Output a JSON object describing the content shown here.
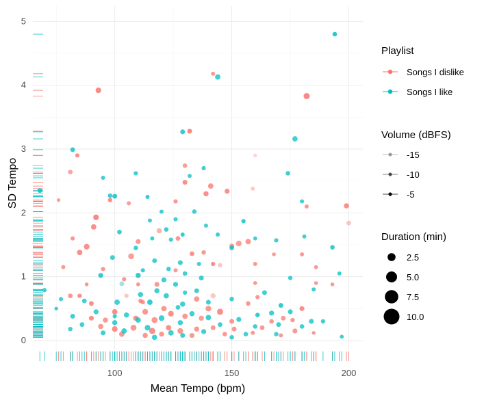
{
  "chart_data": {
    "type": "scatter",
    "xlabel": "Mean Tempo (bpm)",
    "ylabel": "SD Tempo",
    "xlim": [
      65,
      206
    ],
    "ylim": [
      -0.15,
      5.25
    ],
    "xticks": [
      100,
      150,
      200
    ],
    "yticks": [
      0,
      1,
      2,
      3,
      4,
      5
    ],
    "grid": true,
    "rug": true,
    "colors": {
      "Songs I dislike": "#F8766D",
      "Songs I like": "#00BFC4"
    },
    "legend": {
      "placement": "right",
      "playlist": {
        "title": "Playlist",
        "entries": [
          "Songs I dislike",
          "Songs I like"
        ]
      },
      "volume": {
        "title": "Volume (dBFS)",
        "entries": [
          "-15",
          "-10",
          "-5"
        ]
      },
      "duration": {
        "title": "Duration (min)",
        "entries": [
          "2.5",
          "5.0",
          "7.5",
          "10.0"
        ]
      }
    },
    "series": [
      {
        "name": "Songs I dislike",
        "points": [
          [
            93,
            3.92,
            4.8,
            -6
          ],
          [
            142,
            4.18,
            2.4,
            -8
          ],
          [
            182,
            3.83,
            6,
            -6
          ],
          [
            132,
            3.28,
            3.5,
            -6
          ],
          [
            130,
            2.74,
            3,
            -9
          ],
          [
            81,
            2.64,
            3.2,
            -10
          ],
          [
            84,
            2.9,
            2.6,
            -7
          ],
          [
            160,
            2.9,
            2,
            -17
          ],
          [
            159,
            2.38,
            2.2,
            -15
          ],
          [
            141,
            2.42,
            4.5,
            -8
          ],
          [
            130,
            2.48,
            3.6,
            -7
          ],
          [
            148,
            2.34,
            3.8,
            -7
          ],
          [
            139,
            2.3,
            4,
            -7
          ],
          [
            76,
            2.2,
            1.8,
            -9
          ],
          [
            126,
            2.18,
            2.6,
            -8
          ],
          [
            98,
            2.2,
            2.8,
            -7
          ],
          [
            106,
            2.15,
            2.5,
            -9
          ],
          [
            182,
            2.1,
            2.4,
            -8
          ],
          [
            199,
            2.11,
            4,
            -7
          ],
          [
            200,
            1.84,
            3.4,
            -15
          ],
          [
            82,
            1.6,
            2.6,
            -8
          ],
          [
            92,
            1.93,
            5,
            -6
          ],
          [
            91,
            1.78,
            4.5,
            -7
          ],
          [
            119,
            1.72,
            4,
            -12
          ],
          [
            110,
            1.55,
            3.6,
            -8
          ],
          [
            127,
            1.6,
            3.2,
            -8
          ],
          [
            88,
            1.47,
            5,
            -7
          ],
          [
            85,
            1.38,
            4.5,
            -7
          ],
          [
            107,
            1.32,
            5.5,
            -9
          ],
          [
            133,
            1.36,
            3.2,
            -7
          ],
          [
            150,
            1.48,
            3.5,
            -8
          ],
          [
            153,
            1.52,
            5,
            -9
          ],
          [
            157,
            1.55,
            4.5,
            -8
          ],
          [
            138,
            1.38,
            2.8,
            -8
          ],
          [
            142,
            1.2,
            2.7,
            -7
          ],
          [
            160,
            1.2,
            2.4,
            -8
          ],
          [
            168,
            1.35,
            2.2,
            -9
          ],
          [
            180,
            1.35,
            2.4,
            -8
          ],
          [
            145,
            1.18,
            3,
            -15
          ],
          [
            186,
            1.15,
            2.2,
            -8
          ],
          [
            78,
            1.15,
            2.4,
            -8
          ],
          [
            95,
            1.12,
            2.6,
            -8
          ],
          [
            126,
            1.1,
            2.4,
            -8
          ],
          [
            104,
            0.96,
            2.6,
            -8
          ],
          [
            110,
            0.88,
            2.2,
            -8
          ],
          [
            160,
            0.9,
            2.2,
            -8
          ],
          [
            118,
            0.88,
            3.5,
            -8
          ],
          [
            81,
            0.7,
            3.2,
            -8
          ],
          [
            85,
            0.7,
            2.8,
            -7
          ],
          [
            105,
            0.7,
            2.8,
            -15
          ],
          [
            90,
            0.58,
            3.4,
            -7
          ],
          [
            111,
            0.62,
            2.8,
            -8
          ],
          [
            135,
            0.65,
            4.5,
            -8
          ],
          [
            142,
            0.7,
            4,
            -15
          ],
          [
            157,
            0.58,
            3,
            -8
          ],
          [
            161,
            0.68,
            2.6,
            -8
          ],
          [
            180,
            0.5,
            3.6,
            -7
          ],
          [
            145,
            0.45,
            6,
            -7
          ],
          [
            140,
            0.5,
            5,
            -8
          ],
          [
            100,
            0.45,
            4.5,
            -7
          ],
          [
            113,
            0.45,
            5,
            -8
          ],
          [
            121,
            0.5,
            4.5,
            -8
          ],
          [
            124,
            0.42,
            5,
            -7
          ],
          [
            130,
            0.38,
            4.5,
            -8
          ],
          [
            109,
            0.35,
            4,
            -7
          ],
          [
            90,
            0.35,
            3.6,
            -7
          ],
          [
            96,
            0.32,
            4,
            -8
          ],
          [
            117,
            0.32,
            5.5,
            -8
          ],
          [
            137,
            0.35,
            4,
            -9
          ],
          [
            150,
            0.3,
            3.5,
            -8
          ],
          [
            167,
            0.3,
            3,
            -8
          ],
          [
            172,
            0.35,
            3.2,
            -8
          ],
          [
            176,
            0.32,
            2.8,
            -8
          ],
          [
            100,
            0.18,
            5,
            -7
          ],
          [
            108,
            0.2,
            5.5,
            -8
          ],
          [
            116,
            0.15,
            6,
            -7
          ],
          [
            123,
            0.2,
            4.5,
            -7
          ],
          [
            128,
            0.15,
            5,
            -8
          ],
          [
            135,
            0.18,
            4,
            -8
          ],
          [
            142,
            0.2,
            3.5,
            -8
          ],
          [
            151,
            0.18,
            3.4,
            -8
          ],
          [
            163,
            0.2,
            3.2,
            -8
          ],
          [
            177,
            0.15,
            3.6,
            -8
          ],
          [
            94,
            0.22,
            4,
            -8
          ],
          [
            103,
            0.1,
            4.5,
            -8
          ],
          [
            113,
            0.08,
            4,
            -8
          ],
          [
            120,
            0.1,
            3.8,
            -8
          ],
          [
            133,
            0.08,
            3.6,
            -8
          ],
          [
            147,
            0.1,
            3,
            -8
          ],
          [
            159,
            0.12,
            2.4,
            -8
          ],
          [
            171,
            0.08,
            2.4,
            -8
          ],
          [
            185,
            0.12,
            1.8,
            -8
          ],
          [
            186,
            0.9,
            2,
            -8
          ],
          [
            193,
            0.88,
            2,
            -8
          ],
          [
            88,
            0.88,
            2,
            -8
          ],
          [
            112,
            0.6,
            2.6,
            -8
          ]
        ]
      },
      {
        "name": "Songs I like",
        "points": [
          [
            194,
            4.8,
            3,
            -6
          ],
          [
            144,
            4.13,
            4.5,
            -8
          ],
          [
            129,
            3.27,
            3.4,
            -7
          ],
          [
            177,
            3.16,
            4.3,
            -8
          ],
          [
            82,
            2.99,
            3.2,
            -7
          ],
          [
            138,
            2.7,
            2.6,
            -8
          ],
          [
            174,
            2.62,
            3,
            -8
          ],
          [
            109,
            2.62,
            2.6,
            -8
          ],
          [
            132,
            2.58,
            2.4,
            -8
          ],
          [
            95,
            2.55,
            2.4,
            -8
          ],
          [
            68,
            2.35,
            3.4,
            -7
          ],
          [
            98,
            2.27,
            3,
            -8
          ],
          [
            100,
            2.26,
            3.4,
            -7
          ],
          [
            114,
            2.25,
            2.4,
            -7
          ],
          [
            180,
            2.18,
            2.4,
            -8
          ],
          [
            120,
            2.02,
            2.4,
            -8
          ],
          [
            134,
            2.02,
            3,
            -8
          ],
          [
            115,
            1.88,
            2.4,
            -8
          ],
          [
            126,
            1.9,
            2.5,
            -8
          ],
          [
            155,
            1.87,
            2.6,
            -7
          ],
          [
            139,
            1.8,
            2.4,
            -8
          ],
          [
            122,
            1.74,
            3,
            -8
          ],
          [
            102,
            1.7,
            3.2,
            -8
          ],
          [
            129,
            1.66,
            2.4,
            -7
          ],
          [
            116,
            1.6,
            2.4,
            -8
          ],
          [
            124,
            1.58,
            2.6,
            -8
          ],
          [
            144,
            1.66,
            2.5,
            -8
          ],
          [
            160,
            1.6,
            2.2,
            -8
          ],
          [
            169,
            1.57,
            2.6,
            -8
          ],
          [
            181,
            1.63,
            2.4,
            -8
          ],
          [
            193,
            1.46,
            3,
            -7
          ],
          [
            109,
            1.45,
            3,
            -8
          ],
          [
            150,
            1.45,
            3.2,
            -8
          ],
          [
            99,
            1.3,
            3.4,
            -8
          ],
          [
            117,
            1.25,
            3.2,
            -8
          ],
          [
            128,
            1.22,
            3.5,
            -8
          ],
          [
            136,
            1.2,
            2.5,
            -8
          ],
          [
            112,
            1.1,
            2.6,
            -8
          ],
          [
            196,
            1.05,
            2.4,
            -8
          ],
          [
            130,
            1.05,
            3,
            -8
          ],
          [
            123,
            1.12,
            3,
            -8
          ],
          [
            94,
            1.02,
            3.6,
            -7
          ],
          [
            110,
            1.02,
            4,
            -7
          ],
          [
            121,
            0.95,
            3.8,
            -8
          ],
          [
            137,
            0.98,
            3.6,
            -8
          ],
          [
            175,
            0.98,
            2.8,
            -8
          ],
          [
            103,
            0.89,
            3.4,
            -15
          ],
          [
            126,
            0.88,
            3.6,
            -8
          ],
          [
            185,
            0.8,
            2.6,
            -8
          ],
          [
            70,
            0.79,
            2.6,
            -8
          ],
          [
            118,
            0.78,
            4,
            -8
          ],
          [
            135,
            0.78,
            3.4,
            -8
          ],
          [
            164,
            0.75,
            3.4,
            -8
          ],
          [
            130,
            0.75,
            2.6,
            -8
          ],
          [
            111,
            0.72,
            4,
            -8
          ],
          [
            122,
            0.7,
            4.3,
            -8
          ],
          [
            101,
            0.6,
            4.5,
            -8
          ],
          [
            87,
            0.62,
            3.2,
            -8
          ],
          [
            77,
            0.65,
            2.4,
            -8
          ],
          [
            150,
            0.65,
            3,
            -8
          ],
          [
            115,
            0.6,
            4.5,
            -7
          ],
          [
            129,
            0.57,
            4,
            -8
          ],
          [
            140,
            0.6,
            3.4,
            -8
          ],
          [
            127,
            0.52,
            3.2,
            -8
          ],
          [
            171,
            0.55,
            3.4,
            -7
          ],
          [
            82,
            0.38,
            3.4,
            -8
          ],
          [
            105,
            0.4,
            4,
            -8
          ],
          [
            92,
            0.45,
            3.8,
            -8
          ],
          [
            175,
            0.45,
            3.6,
            -8
          ],
          [
            133,
            0.42,
            4,
            -8
          ],
          [
            161,
            0.4,
            3,
            -7
          ],
          [
            110,
            0.32,
            4.5,
            -8
          ],
          [
            120,
            0.35,
            5,
            -8
          ],
          [
            140,
            0.36,
            4.5,
            -8
          ],
          [
            153,
            0.33,
            3.6,
            -8
          ],
          [
            184,
            0.3,
            3.6,
            -8
          ],
          [
            170,
            0.25,
            3.4,
            -8
          ],
          [
            128,
            0.28,
            4,
            -8
          ],
          [
            100,
            0.28,
            4,
            -8
          ],
          [
            86,
            0.25,
            3.2,
            -8
          ],
          [
            114,
            0.2,
            5,
            -8
          ],
          [
            145,
            0.25,
            3.2,
            -8
          ],
          [
            160,
            0.22,
            3,
            -8
          ],
          [
            104,
            0.15,
            4.5,
            -8
          ],
          [
            124,
            0.12,
            4.6,
            -8
          ],
          [
            138,
            0.14,
            3.8,
            -8
          ],
          [
            156,
            0.1,
            3,
            -8
          ],
          [
            81,
            0.18,
            2.8,
            -8
          ],
          [
            95,
            0.12,
            3.6,
            -8
          ],
          [
            117,
            0.05,
            4.2,
            -8
          ],
          [
            129,
            0.08,
            3.4,
            -8
          ],
          [
            150,
            0.05,
            3,
            -8
          ],
          [
            169,
            0.1,
            2.8,
            -8
          ],
          [
            180,
            0.22,
            3,
            -8
          ],
          [
            189,
            0.3,
            2.8,
            -8
          ],
          [
            197,
            0.06,
            2.2,
            -8
          ],
          [
            167,
            0.43,
            3.8,
            -8
          ],
          [
            75,
            0.5,
            1.8,
            -8
          ],
          [
            100,
            0.38,
            2.6,
            -8
          ]
        ]
      }
    ]
  }
}
